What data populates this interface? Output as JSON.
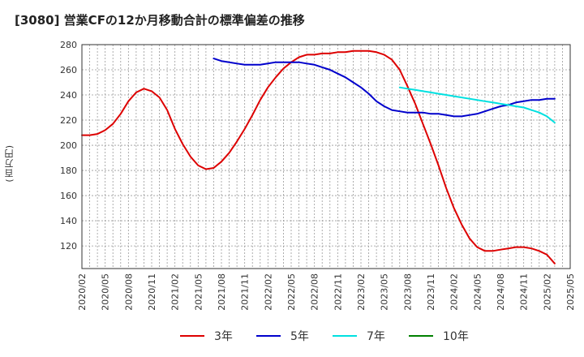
{
  "title": "[3080]  営業CFの12か月移動合計の標準偏差の推移",
  "y_unit": "(百万円)",
  "chart_data": {
    "type": "line",
    "title": "[3080]  営業CFの12か月移動合計の標準偏差の推移",
    "ylabel": "(百万円)",
    "xlabel": "",
    "ylim": [
      102,
      280
    ],
    "yticks": [
      120,
      140,
      160,
      180,
      200,
      220,
      240,
      260,
      280
    ],
    "x_tick_labels": [
      "2020/02",
      "2020/05",
      "2020/08",
      "2020/11",
      "2021/02",
      "2021/05",
      "2021/08",
      "2021/11",
      "2022/02",
      "2022/05",
      "2022/08",
      "2022/11",
      "2023/02",
      "2023/05",
      "2023/08",
      "2023/11",
      "2024/02",
      "2024/05",
      "2024/08",
      "2024/11",
      "2025/02",
      "2025/05"
    ],
    "grid": true,
    "legend_position": "bottom",
    "series": [
      {
        "name": "3年",
        "color": "#dd0000",
        "data": [
          [
            "2020/02",
            208
          ],
          [
            "2020/03",
            208
          ],
          [
            "2020/04",
            209
          ],
          [
            "2020/05",
            212
          ],
          [
            "2020/06",
            217
          ],
          [
            "2020/07",
            225
          ],
          [
            "2020/08",
            235
          ],
          [
            "2020/09",
            242
          ],
          [
            "2020/10",
            245
          ],
          [
            "2020/11",
            243
          ],
          [
            "2020/12",
            238
          ],
          [
            "2021/01",
            228
          ],
          [
            "2021/02",
            213
          ],
          [
            "2021/03",
            201
          ],
          [
            "2021/04",
            191
          ],
          [
            "2021/05",
            184
          ],
          [
            "2021/06",
            181
          ],
          [
            "2021/07",
            182
          ],
          [
            "2021/08",
            187
          ],
          [
            "2021/09",
            194
          ],
          [
            "2021/10",
            203
          ],
          [
            "2021/11",
            213
          ],
          [
            "2021/12",
            224
          ],
          [
            "2022/01",
            236
          ],
          [
            "2022/02",
            246
          ],
          [
            "2022/03",
            254
          ],
          [
            "2022/04",
            261
          ],
          [
            "2022/05",
            266
          ],
          [
            "2022/06",
            270
          ],
          [
            "2022/07",
            272
          ],
          [
            "2022/08",
            272
          ],
          [
            "2022/09",
            273
          ],
          [
            "2022/10",
            273
          ],
          [
            "2022/11",
            274
          ],
          [
            "2022/12",
            274
          ],
          [
            "2023/01",
            275
          ],
          [
            "2023/02",
            275
          ],
          [
            "2023/03",
            275
          ],
          [
            "2023/04",
            274
          ],
          [
            "2023/05",
            272
          ],
          [
            "2023/06",
            268
          ],
          [
            "2023/07",
            260
          ],
          [
            "2023/08",
            247
          ],
          [
            "2023/09",
            233
          ],
          [
            "2023/10",
            217
          ],
          [
            "2023/11",
            201
          ],
          [
            "2023/12",
            184
          ],
          [
            "2024/01",
            166
          ],
          [
            "2024/02",
            150
          ],
          [
            "2024/03",
            137
          ],
          [
            "2024/04",
            126
          ],
          [
            "2024/05",
            119
          ],
          [
            "2024/06",
            116
          ],
          [
            "2024/07",
            116
          ],
          [
            "2024/08",
            117
          ],
          [
            "2024/09",
            118
          ],
          [
            "2024/10",
            119
          ],
          [
            "2024/11",
            119
          ],
          [
            "2024/12",
            118
          ],
          [
            "2025/01",
            116
          ],
          [
            "2025/02",
            113
          ],
          [
            "2025/03",
            106
          ]
        ]
      },
      {
        "name": "5年",
        "color": "#0000cc",
        "data": [
          [
            "2021/07",
            269
          ],
          [
            "2021/08",
            267
          ],
          [
            "2021/09",
            266
          ],
          [
            "2021/10",
            265
          ],
          [
            "2021/11",
            264
          ],
          [
            "2021/12",
            264
          ],
          [
            "2022/01",
            264
          ],
          [
            "2022/02",
            265
          ],
          [
            "2022/03",
            266
          ],
          [
            "2022/04",
            266
          ],
          [
            "2022/05",
            266
          ],
          [
            "2022/06",
            266
          ],
          [
            "2022/07",
            265
          ],
          [
            "2022/08",
            264
          ],
          [
            "2022/09",
            262
          ],
          [
            "2022/10",
            260
          ],
          [
            "2022/11",
            257
          ],
          [
            "2022/12",
            254
          ],
          [
            "2023/01",
            250
          ],
          [
            "2023/02",
            246
          ],
          [
            "2023/03",
            241
          ],
          [
            "2023/04",
            235
          ],
          [
            "2023/05",
            231
          ],
          [
            "2023/06",
            228
          ],
          [
            "2023/07",
            227
          ],
          [
            "2023/08",
            226
          ],
          [
            "2023/09",
            226
          ],
          [
            "2023/10",
            226
          ],
          [
            "2023/11",
            225
          ],
          [
            "2023/12",
            225
          ],
          [
            "2024/01",
            224
          ],
          [
            "2024/02",
            223
          ],
          [
            "2024/03",
            223
          ],
          [
            "2024/04",
            224
          ],
          [
            "2024/05",
            225
          ],
          [
            "2024/06",
            227
          ],
          [
            "2024/07",
            229
          ],
          [
            "2024/08",
            231
          ],
          [
            "2024/09",
            232
          ],
          [
            "2024/10",
            234
          ],
          [
            "2024/11",
            235
          ],
          [
            "2024/12",
            236
          ],
          [
            "2025/01",
            236
          ],
          [
            "2025/02",
            237
          ],
          [
            "2025/03",
            237
          ]
        ]
      },
      {
        "name": "7年",
        "color": "#00e0e0",
        "data": [
          [
            "2023/07",
            246
          ],
          [
            "2023/08",
            245
          ],
          [
            "2023/09",
            244
          ],
          [
            "2023/10",
            243
          ],
          [
            "2023/11",
            242
          ],
          [
            "2023/12",
            241
          ],
          [
            "2024/01",
            240
          ],
          [
            "2024/02",
            239
          ],
          [
            "2024/03",
            238
          ],
          [
            "2024/04",
            237
          ],
          [
            "2024/05",
            236
          ],
          [
            "2024/06",
            235
          ],
          [
            "2024/07",
            234
          ],
          [
            "2024/08",
            233
          ],
          [
            "2024/09",
            232
          ],
          [
            "2024/10",
            231
          ],
          [
            "2024/11",
            230
          ],
          [
            "2024/12",
            228
          ],
          [
            "2025/01",
            226
          ],
          [
            "2025/02",
            223
          ],
          [
            "2025/03",
            218
          ]
        ]
      },
      {
        "name": "10年",
        "color": "#008000",
        "data": []
      }
    ]
  }
}
